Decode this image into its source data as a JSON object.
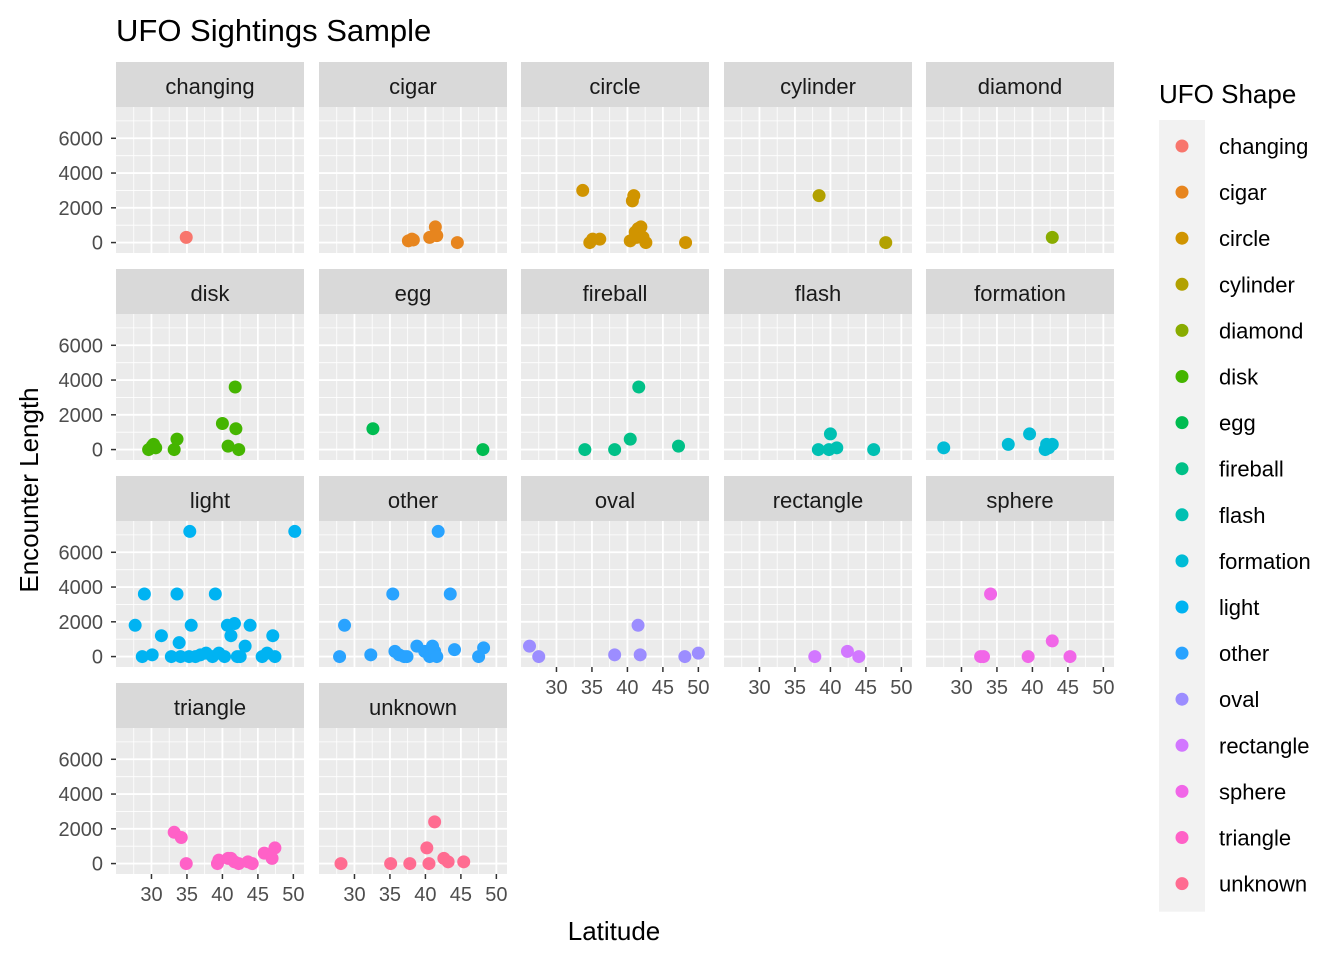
{
  "chart_data": {
    "type": "scatter",
    "title": "UFO Sightings Sample",
    "xlabel": "Latitude",
    "ylabel": "Encounter Length",
    "xlim": [
      25,
      51.5
    ],
    "ylim": [
      -600,
      7800
    ],
    "x_ticks": [
      30,
      35,
      40,
      45,
      50
    ],
    "y_ticks": [
      0,
      2000,
      4000,
      6000
    ],
    "grid": true,
    "legend": {
      "title": "UFO Shape",
      "position": "right"
    },
    "facets": [
      {
        "name": "changing",
        "color": "#F8766D",
        "points": [
          [
            34.9,
            300
          ]
        ]
      },
      {
        "name": "cigar",
        "color": "#E7851E",
        "points": [
          [
            37.6,
            100
          ],
          [
            38.1,
            200
          ],
          [
            38.3,
            150
          ],
          [
            40.6,
            300
          ],
          [
            41.4,
            900
          ],
          [
            41.6,
            400
          ],
          [
            44.5,
            0
          ]
        ]
      },
      {
        "name": "circle",
        "color": "#D09400",
        "points": [
          [
            33.7,
            3000
          ],
          [
            34.7,
            0
          ],
          [
            35.1,
            200
          ],
          [
            36.1,
            200
          ],
          [
            40.4,
            100
          ],
          [
            40.7,
            2400
          ],
          [
            40.9,
            2700
          ],
          [
            41.1,
            600
          ],
          [
            41.3,
            300
          ],
          [
            41.5,
            800
          ],
          [
            41.9,
            900
          ],
          [
            42.2,
            300
          ],
          [
            42.6,
            0
          ],
          [
            48.2,
            0
          ]
        ]
      },
      {
        "name": "cylinder",
        "color": "#B2A100",
        "points": [
          [
            38.4,
            2700
          ],
          [
            47.8,
            0
          ]
        ]
      },
      {
        "name": "diamond",
        "color": "#89AC00",
        "points": [
          [
            42.8,
            300
          ]
        ]
      },
      {
        "name": "disk",
        "color": "#45B500",
        "points": [
          [
            29.6,
            0
          ],
          [
            30.1,
            200
          ],
          [
            30.3,
            300
          ],
          [
            30.6,
            100
          ],
          [
            33.2,
            0
          ],
          [
            33.6,
            600
          ],
          [
            40.0,
            1500
          ],
          [
            40.8,
            200
          ],
          [
            41.8,
            3600
          ],
          [
            41.9,
            1200
          ],
          [
            42.3,
            0
          ]
        ]
      },
      {
        "name": "egg",
        "color": "#00BC51",
        "points": [
          [
            32.6,
            1200
          ],
          [
            48.1,
            0
          ]
        ]
      },
      {
        "name": "fireball",
        "color": "#00C087",
        "points": [
          [
            34.0,
            0
          ],
          [
            38.2,
            0
          ],
          [
            40.4,
            600
          ],
          [
            41.6,
            3600
          ],
          [
            47.2,
            200
          ]
        ]
      },
      {
        "name": "flash",
        "color": "#00C0B2",
        "points": [
          [
            38.3,
            0
          ],
          [
            39.8,
            0
          ],
          [
            40.0,
            900
          ],
          [
            40.9,
            100
          ],
          [
            46.1,
            0
          ]
        ]
      },
      {
        "name": "formation",
        "color": "#00BCD6",
        "points": [
          [
            27.5,
            100
          ],
          [
            36.6,
            300
          ],
          [
            39.6,
            900
          ],
          [
            41.8,
            0
          ],
          [
            42.0,
            300
          ],
          [
            42.3,
            100
          ],
          [
            42.8,
            300
          ]
        ]
      },
      {
        "name": "light",
        "color": "#00B3F2",
        "points": [
          [
            27.7,
            1800
          ],
          [
            28.7,
            0
          ],
          [
            29.0,
            3600
          ],
          [
            30.1,
            100
          ],
          [
            31.4,
            1200
          ],
          [
            32.8,
            0
          ],
          [
            33.6,
            3600
          ],
          [
            33.9,
            800
          ],
          [
            34.1,
            0
          ],
          [
            35.3,
            0
          ],
          [
            35.4,
            7200
          ],
          [
            35.6,
            1800
          ],
          [
            36.2,
            0
          ],
          [
            36.9,
            100
          ],
          [
            37.7,
            200
          ],
          [
            38.6,
            0
          ],
          [
            39.0,
            3600
          ],
          [
            39.5,
            200
          ],
          [
            40.3,
            0
          ],
          [
            40.7,
            1800
          ],
          [
            41.2,
            1200
          ],
          [
            41.7,
            1900
          ],
          [
            42.1,
            0
          ],
          [
            42.5,
            0
          ],
          [
            43.2,
            600
          ],
          [
            43.9,
            1800
          ],
          [
            45.6,
            0
          ],
          [
            46.3,
            200
          ],
          [
            47.1,
            1200
          ],
          [
            47.4,
            0
          ],
          [
            50.2,
            7200
          ]
        ]
      },
      {
        "name": "other",
        "color": "#29A3FF",
        "points": [
          [
            27.9,
            0
          ],
          [
            28.6,
            1800
          ],
          [
            32.3,
            100
          ],
          [
            35.4,
            3600
          ],
          [
            35.7,
            300
          ],
          [
            36.3,
            100
          ],
          [
            37.0,
            0
          ],
          [
            37.4,
            0
          ],
          [
            38.8,
            600
          ],
          [
            39.9,
            300
          ],
          [
            40.6,
            0
          ],
          [
            41.0,
            600
          ],
          [
            41.3,
            300
          ],
          [
            41.6,
            0
          ],
          [
            41.8,
            7200
          ],
          [
            43.5,
            3600
          ],
          [
            44.1,
            400
          ],
          [
            47.5,
            0
          ],
          [
            48.2,
            500
          ]
        ]
      },
      {
        "name": "oval",
        "color": "#9C8DFF",
        "points": [
          [
            26.2,
            600
          ],
          [
            27.5,
            0
          ],
          [
            38.2,
            100
          ],
          [
            41.5,
            1800
          ],
          [
            41.8,
            100
          ],
          [
            48.1,
            0
          ],
          [
            50.0,
            200
          ]
        ]
      },
      {
        "name": "rectangle",
        "color": "#D277FF",
        "points": [
          [
            37.8,
            0
          ],
          [
            42.4,
            300
          ],
          [
            44.0,
            0
          ]
        ]
      },
      {
        "name": "sphere",
        "color": "#F166E8",
        "points": [
          [
            32.7,
            0
          ],
          [
            33.1,
            0
          ],
          [
            34.1,
            3600
          ],
          [
            39.4,
            0
          ],
          [
            42.8,
            900
          ],
          [
            45.3,
            0
          ]
        ]
      },
      {
        "name": "triangle",
        "color": "#FF61C7",
        "points": [
          [
            33.2,
            1800
          ],
          [
            34.2,
            1500
          ],
          [
            34.9,
            0
          ],
          [
            39.3,
            0
          ],
          [
            39.5,
            200
          ],
          [
            40.8,
            300
          ],
          [
            41.2,
            300
          ],
          [
            41.7,
            100
          ],
          [
            42.3,
            0
          ],
          [
            43.6,
            100
          ],
          [
            44.2,
            0
          ],
          [
            45.9,
            600
          ],
          [
            47.0,
            300
          ],
          [
            47.4,
            900
          ]
        ]
      },
      {
        "name": "unknown",
        "color": "#FF6C91",
        "points": [
          [
            28.1,
            0
          ],
          [
            35.1,
            0
          ],
          [
            37.8,
            0
          ],
          [
            40.2,
            900
          ],
          [
            40.5,
            0
          ],
          [
            41.3,
            2400
          ],
          [
            42.6,
            300
          ],
          [
            43.2,
            100
          ],
          [
            45.4,
            100
          ]
        ]
      }
    ]
  }
}
